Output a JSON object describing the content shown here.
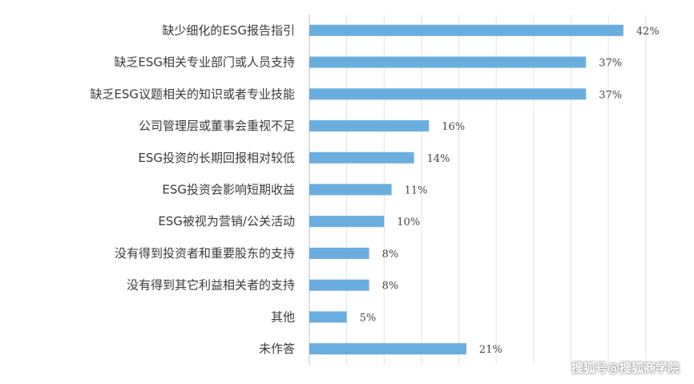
{
  "chart_data": {
    "type": "bar",
    "orientation": "horizontal",
    "categories": [
      "缺少细化的ESG报告指引",
      "缺乏ESG相关专业部门或人员支持",
      "缺乏ESG议题相关的知识或者专业技能",
      "公司管理层或董事会重视不足",
      "ESG投资的长期回报相对较低",
      "ESG投资会影响短期收益",
      "ESG被视为营销/公关活动",
      "没有得到投资者和重要股东的支持",
      "没有得到其它利益相关者的支持",
      "其他",
      "未作答"
    ],
    "values": [
      42,
      37,
      37,
      16,
      14,
      11,
      10,
      8,
      8,
      5,
      21
    ],
    "value_labels": [
      "42%",
      "37%",
      "37%",
      "16%",
      "14%",
      "11%",
      "10%",
      "8%",
      "8%",
      "5%",
      "21%"
    ],
    "xlim": [
      0,
      45
    ],
    "grid": true,
    "bar_color": "#6aaee0"
  },
  "watermark": "搜狐号@搜狐商学院"
}
